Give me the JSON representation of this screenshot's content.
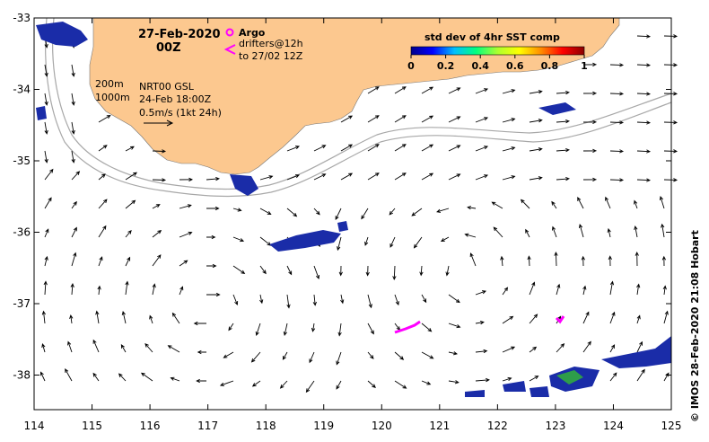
{
  "date_line1": "27-Feb-2020",
  "date_line2": "00Z",
  "legend": {
    "argo_label": "Argo",
    "drifters_label": "drifters@12h",
    "drifters_to": "to 27/02 12Z",
    "depth_200": "200m",
    "depth_1000": "1000m",
    "model_line1": "NRT00 GSL",
    "model_line2": "24-Feb 18:00Z",
    "speed_scale": "0.5m/s (1kt 24h)"
  },
  "colorbar": {
    "title": "std dev of 4hr SST comp",
    "ticks": [
      "0",
      "0.2",
      "0.4",
      "0.6",
      "0.8",
      "1"
    ],
    "colors": [
      "#00008b",
      "#0000ff",
      "#00bfff",
      "#00ff7f",
      "#adff2f",
      "#ffff00",
      "#ff8c00",
      "#ff0000",
      "#8b0000"
    ]
  },
  "axes": {
    "x_ticks": [
      "114",
      "115",
      "116",
      "117",
      "118",
      "119",
      "120",
      "121",
      "122",
      "123",
      "124",
      "125"
    ],
    "y_ticks": [
      "-33",
      "-34",
      "-35",
      "-36",
      "-37",
      "-38"
    ]
  },
  "credit": "©  IMOS 28-Feb-2020 21:08 Hobart",
  "colors": {
    "land": "#fcc88f",
    "sst_blob": "#1a2ca8",
    "argo": "#ff00ff",
    "isobath": "#a8a8a8",
    "arrow": "#000000"
  }
}
